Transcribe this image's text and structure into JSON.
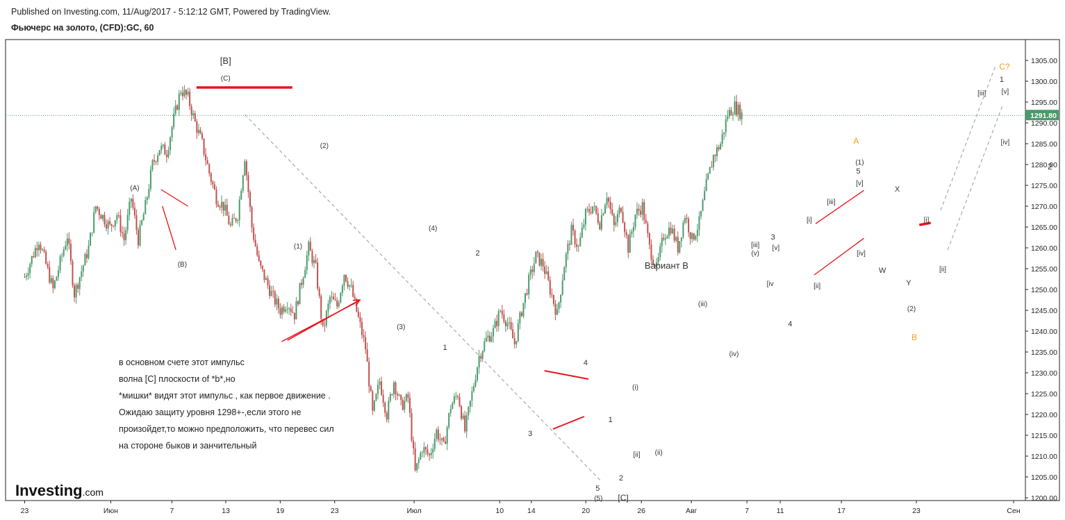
{
  "header": {
    "published": "Published on Investing.com, 11/Aug/2017 - 5:12:12 GMT, Powered by TradingView.",
    "instrument": "Фьючерс на золото, (CFD):GC, 60"
  },
  "logo": {
    "main": "Investing",
    "suffix": ".com"
  },
  "annotation_lines": [
    "в основном счете этот импульс",
    "волна [C] плоскости of *b*,но",
    "*мишки* видят этот импульс , как первое движение .",
    "Ожидаю защиту уровня 1298+-,если этого не",
    "произойдет,то можно предположить, что перевес сил",
    "на стороне быков и занчительный"
  ],
  "colors": {
    "up": "#4a9a6a",
    "down": "#c0504d",
    "price_line": "#4a9a6a",
    "trend": "#e8141c",
    "orange": "#f0a020",
    "dash": "#999999"
  },
  "chart_data": {
    "type": "candlestick",
    "ylim": [
      1198,
      1308
    ],
    "y_ticks": [
      1200,
      1205,
      1210,
      1215,
      1220,
      1225,
      1230,
      1235,
      1240,
      1245,
      1250,
      1255,
      1260,
      1265,
      1270,
      1275,
      1280,
      1285,
      1290,
      1295,
      1300,
      1305
    ],
    "x_ticks": [
      "23",
      "Июн",
      "7",
      "13",
      "19",
      "23",
      "Июл",
      "10",
      "14",
      "20",
      "26",
      "Авг",
      "7",
      "11",
      "17",
      "23",
      "Сен"
    ],
    "last_price": 1291.8,
    "last_price_label": "1291.80",
    "price_path": [
      [
        0,
        1253
      ],
      [
        2,
        1262
      ],
      [
        4,
        1250
      ],
      [
        6,
        1263
      ],
      [
        7,
        1249
      ],
      [
        9,
        1260
      ],
      [
        10,
        1270
      ],
      [
        12,
        1265
      ],
      [
        13,
        1268
      ],
      [
        14,
        1262
      ],
      [
        15,
        1272
      ],
      [
        16,
        1262
      ],
      [
        17,
        1270
      ],
      [
        18,
        1280
      ],
      [
        19,
        1284
      ],
      [
        20,
        1283
      ],
      [
        21,
        1291
      ],
      [
        22,
        1298
      ],
      [
        23,
        1296
      ],
      [
        24,
        1290
      ],
      [
        25,
        1285
      ],
      [
        26,
        1278
      ],
      [
        27,
        1272
      ],
      [
        28,
        1270
      ],
      [
        29,
        1265
      ],
      [
        30,
        1268
      ],
      [
        31,
        1282
      ],
      [
        32,
        1265
      ],
      [
        33,
        1256
      ],
      [
        34,
        1252
      ],
      [
        35,
        1248
      ],
      [
        36,
        1245
      ],
      [
        37,
        1247
      ],
      [
        38,
        1244
      ],
      [
        39,
        1252
      ],
      [
        40,
        1260
      ],
      [
        41,
        1255
      ],
      [
        42,
        1240
      ],
      [
        43,
        1248
      ],
      [
        44,
        1246
      ],
      [
        45,
        1254
      ],
      [
        46,
        1250
      ],
      [
        47,
        1243
      ],
      [
        48,
        1236
      ],
      [
        49,
        1220
      ],
      [
        50,
        1228
      ],
      [
        51,
        1220
      ],
      [
        52,
        1228
      ],
      [
        53,
        1222
      ],
      [
        54,
        1224
      ],
      [
        55,
        1206
      ],
      [
        56,
        1212
      ],
      [
        57,
        1210
      ],
      [
        58,
        1216
      ],
      [
        59,
        1212
      ],
      [
        60,
        1222
      ],
      [
        61,
        1225
      ],
      [
        62,
        1216
      ],
      [
        63,
        1225
      ],
      [
        64,
        1234
      ],
      [
        65,
        1238
      ],
      [
        66,
        1240
      ],
      [
        67,
        1245
      ],
      [
        68,
        1242
      ],
      [
        69,
        1237
      ],
      [
        70,
        1245
      ],
      [
        71,
        1252
      ],
      [
        72,
        1258
      ],
      [
        73,
        1256
      ],
      [
        74,
        1250
      ],
      [
        75,
        1244
      ],
      [
        76,
        1256
      ],
      [
        77,
        1264
      ],
      [
        78,
        1260
      ],
      [
        79,
        1268
      ],
      [
        80,
        1270
      ],
      [
        81,
        1266
      ],
      [
        82,
        1273
      ],
      [
        83,
        1265
      ],
      [
        84,
        1270
      ],
      [
        85,
        1260
      ],
      [
        86,
        1268
      ],
      [
        87,
        1270
      ],
      [
        88,
        1260
      ],
      [
        89,
        1255
      ],
      [
        90,
        1263
      ],
      [
        91,
        1265
      ],
      [
        92,
        1260
      ],
      [
        93,
        1268
      ],
      [
        94,
        1262
      ],
      [
        95,
        1266
      ],
      [
        96,
        1275
      ],
      [
        97,
        1282
      ],
      [
        98,
        1285
      ],
      [
        99,
        1292
      ],
      [
        100,
        1294
      ],
      [
        101,
        1292
      ]
    ],
    "wave_labels": [
      {
        "t": "[B]",
        "x": 28.3,
        "y": 1304.2,
        "c": "dark",
        "s": 13
      },
      {
        "t": "(C)",
        "x": 28.3,
        "y": 1300.2,
        "c": "dark",
        "s": 10
      },
      {
        "t": "(A)",
        "x": 15.5,
        "y": 1273.8,
        "c": "dark",
        "s": 10
      },
      {
        "t": "(B)",
        "x": 22.2,
        "y": 1255.5,
        "c": "dark",
        "s": 10
      },
      {
        "t": "(2)",
        "x": 42.2,
        "y": 1284.0,
        "c": "dark",
        "s": 10
      },
      {
        "t": "(1)",
        "x": 38.5,
        "y": 1259.8,
        "c": "dark",
        "s": 10
      },
      {
        "t": "(4)",
        "x": 57.5,
        "y": 1264.2,
        "c": "dark",
        "s": 10
      },
      {
        "t": "2",
        "x": 63.8,
        "y": 1258.2,
        "c": "dark",
        "s": 11
      },
      {
        "t": "(3)",
        "x": 53.0,
        "y": 1240.5,
        "c": "dark",
        "s": 10
      },
      {
        "t": "1",
        "x": 59.2,
        "y": 1235.5,
        "c": "dark",
        "s": 11
      },
      {
        "t": "4",
        "x": 79.0,
        "y": 1231.8,
        "c": "dark",
        "s": 11
      },
      {
        "t": "3",
        "x": 71.2,
        "y": 1214.8,
        "c": "dark",
        "s": 11
      },
      {
        "t": "1",
        "x": 82.5,
        "y": 1218.2,
        "c": "dark",
        "s": 11
      },
      {
        "t": "(i)",
        "x": 86.0,
        "y": 1226.0,
        "c": "dark",
        "s": 10
      },
      {
        "t": "[ii]",
        "x": 86.2,
        "y": 1209.8,
        "c": "dark",
        "s": 10
      },
      {
        "t": "(ii)",
        "x": 89.3,
        "y": 1210.3,
        "c": "dark",
        "s": 10
      },
      {
        "t": "2",
        "x": 84.0,
        "y": 1204.2,
        "c": "dark",
        "s": 11
      },
      {
        "t": "5",
        "x": 80.7,
        "y": 1201.7,
        "c": "dark",
        "s": 11
      },
      {
        "t": "(5)",
        "x": 80.8,
        "y": 1199.3,
        "c": "dark",
        "s": 10
      },
      {
        "t": "[C]",
        "x": 84.3,
        "y": 1199.3,
        "c": "dark",
        "s": 12
      },
      {
        "t": "(iii)",
        "x": 95.5,
        "y": 1246.0,
        "c": "dark",
        "s": 10
      },
      {
        "t": "(iv)",
        "x": 99.9,
        "y": 1234.0,
        "c": "dark",
        "s": 10
      },
      {
        "t": "Вариант B",
        "x": 90.4,
        "y": 1255.0,
        "c": "dark",
        "s": 13
      },
      {
        "t": "[iii]",
        "x": 102.9,
        "y": 1260.2,
        "c": "dark",
        "s": 10
      },
      {
        "t": "(v)",
        "x": 102.9,
        "y": 1258.2,
        "c": "dark",
        "s": 10
      },
      {
        "t": "3",
        "x": 105.4,
        "y": 1262.0,
        "c": "dark",
        "s": 11
      },
      {
        "t": "[v]",
        "x": 105.8,
        "y": 1259.5,
        "c": "dark",
        "s": 10
      },
      {
        "t": "[iv",
        "x": 105.0,
        "y": 1250.8,
        "c": "dark",
        "s": 10
      },
      {
        "t": "4",
        "x": 107.8,
        "y": 1241.2,
        "c": "dark",
        "s": 11
      },
      {
        "t": "[i]",
        "x": 110.5,
        "y": 1266.2,
        "c": "dark",
        "s": 10
      },
      {
        "t": "[ii]",
        "x": 111.6,
        "y": 1250.3,
        "c": "dark",
        "s": 10
      },
      {
        "t": "[iii]",
        "x": 113.6,
        "y": 1270.5,
        "c": "dark",
        "s": 10
      },
      {
        "t": "A",
        "x": 117.1,
        "y": 1285.0,
        "c": "orange",
        "s": 12
      },
      {
        "t": "(1)",
        "x": 117.6,
        "y": 1280.0,
        "c": "dark",
        "s": 10
      },
      {
        "t": "5",
        "x": 117.4,
        "y": 1277.8,
        "c": "dark",
        "s": 11
      },
      {
        "t": "[v]",
        "x": 117.6,
        "y": 1275.0,
        "c": "dark",
        "s": 10
      },
      {
        "t": "[iv]",
        "x": 117.8,
        "y": 1258.2,
        "c": "dark",
        "s": 10
      },
      {
        "t": "X",
        "x": 122.9,
        "y": 1273.5,
        "c": "dark",
        "s": 11
      },
      {
        "t": "W",
        "x": 120.8,
        "y": 1254.0,
        "c": "dark",
        "s": 11
      },
      {
        "t": "Y",
        "x": 124.5,
        "y": 1251.0,
        "c": "dark",
        "s": 11
      },
      {
        "t": "(2)",
        "x": 124.9,
        "y": 1244.8,
        "c": "dark",
        "s": 10
      },
      {
        "t": "B",
        "x": 125.3,
        "y": 1237.8,
        "c": "orange",
        "s": 12
      },
      {
        "t": "[i]",
        "x": 127.0,
        "y": 1266.2,
        "c": "dark",
        "s": 10
      },
      {
        "t": "[ii]",
        "x": 129.3,
        "y": 1254.3,
        "c": "dark",
        "s": 10
      },
      {
        "t": "C?",
        "x": 138.0,
        "y": 1302.8,
        "c": "orange",
        "s": 12
      },
      {
        "t": "1",
        "x": 137.6,
        "y": 1299.8,
        "c": "dark",
        "s": 11
      },
      {
        "t": "[iii]",
        "x": 134.8,
        "y": 1296.6,
        "c": "dark",
        "s": 10
      },
      {
        "t": "[v]",
        "x": 138.1,
        "y": 1297.0,
        "c": "dark",
        "s": 10
      },
      {
        "t": "[iv]",
        "x": 138.1,
        "y": 1284.8,
        "c": "dark",
        "s": 10
      },
      {
        "t": "2",
        "x": 144.4,
        "y": 1278.8,
        "c": "dark",
        "s": 12
      }
    ],
    "trend_lines": [
      {
        "x1": 24.2,
        "y1": 1298.5,
        "x2": 37.7,
        "y2": 1298.5,
        "w": 3.5
      },
      {
        "x1": 19.2,
        "y1": 1274.0,
        "x2": 23.0,
        "y2": 1270.0,
        "w": 1.3
      },
      {
        "x1": 19.4,
        "y1": 1270.0,
        "x2": 21.3,
        "y2": 1259.5,
        "w": 1.3
      },
      {
        "x1": 36.2,
        "y1": 1237.5,
        "x2": 46.6,
        "y2": 1246.8,
        "w": 1.5
      },
      {
        "x1": 73.2,
        "y1": 1230.5,
        "x2": 79.4,
        "y2": 1228.5,
        "w": 2.0
      },
      {
        "x1": 74.4,
        "y1": 1216.5,
        "x2": 78.8,
        "y2": 1219.5,
        "w": 2.0
      },
      {
        "x1": 111.4,
        "y1": 1265.8,
        "x2": 118.2,
        "y2": 1273.8,
        "w": 1.3
      },
      {
        "x1": 111.2,
        "y1": 1253.5,
        "x2": 118.2,
        "y2": 1262.3,
        "w": 1.3
      },
      {
        "x1": 126.0,
        "y1": 1265.5,
        "x2": 127.6,
        "y2": 1266.0,
        "w": 3.5
      }
    ],
    "dashed_lines": [
      {
        "x1": 31.0,
        "y1": 1292.0,
        "x2": 81.3,
        "y2": 1203.8
      },
      {
        "x1": 129.0,
        "y1": 1269.0,
        "x2": 136.8,
        "y2": 1304.0
      },
      {
        "x1": 130.0,
        "y1": 1259.5,
        "x2": 137.8,
        "y2": 1294.5
      }
    ],
    "arrow": {
      "x1": 37.0,
      "y1": 1237.8,
      "x2": 47.2,
      "y2": 1247.5
    }
  }
}
